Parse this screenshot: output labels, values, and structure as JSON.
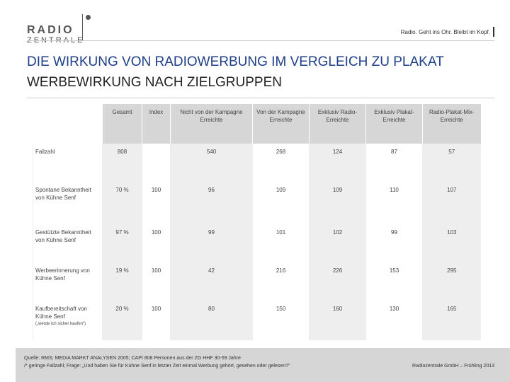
{
  "header": {
    "logo_line1": "RADIO",
    "logo_line2": "ZENTRALE",
    "slogan": "Radio. Geht ins Ohr. Bleibt im Kopf."
  },
  "title": "DIE WIRKUNG VON RADIOWERBUNG IM VERGLEICH ZU PLAKAT",
  "subtitle": "WERBEWIRKUNG NACH ZIELGRUPPEN",
  "table": {
    "columns": [
      "Gesamt",
      "Index",
      "Nicht von der Kampagne Erreichte",
      "Von der Kampagne Erreichte",
      "Exklusiv Radio-Erreichte",
      "Exklusiv Plakat-Erreichte",
      "Radio-Plakat-Mix-Erreichte"
    ],
    "rows": [
      {
        "label": "Fallzahl",
        "note": "",
        "values": [
          "808",
          "",
          "540",
          "268",
          "124",
          "87",
          "57"
        ]
      },
      {
        "label": "Spontane Bekanntheit von Kühne Senf",
        "note": "",
        "values": [
          "70 %",
          "100",
          "96",
          "109",
          "109",
          "110",
          "107"
        ]
      },
      {
        "label": "Gestützte Bekanntheit von Kühne Senf",
        "note": "",
        "values": [
          "97 %",
          "100",
          "99",
          "101",
          "102",
          "99",
          "103"
        ]
      },
      {
        "label": "Werbeerinnerung von Kühne Senf",
        "note": "",
        "values": [
          "19 %",
          "100",
          "42",
          "216",
          "226",
          "153",
          "295"
        ]
      },
      {
        "label": "Kaufbereitschaft von Kühne Senf",
        "note": "(„werde ich sicher kaufen“)",
        "values": [
          "20 %",
          "100",
          "80",
          "150",
          "160",
          "130",
          "165"
        ]
      }
    ]
  },
  "footer": {
    "source": "Quelle: RMS; MEDIA MARKT ANALYSEN 2005; CAPI 808 Personen aus der ZG HHF 30-59 Jahre",
    "note": "/* geringe Fallzahl; Frage: „Und haben Sie für Kühne Senf in letzter Zeit einmal Werbung gehört, gesehen oder gelesen?“",
    "copyright": "Radiozentrale GmbH – Frühling 2013"
  }
}
